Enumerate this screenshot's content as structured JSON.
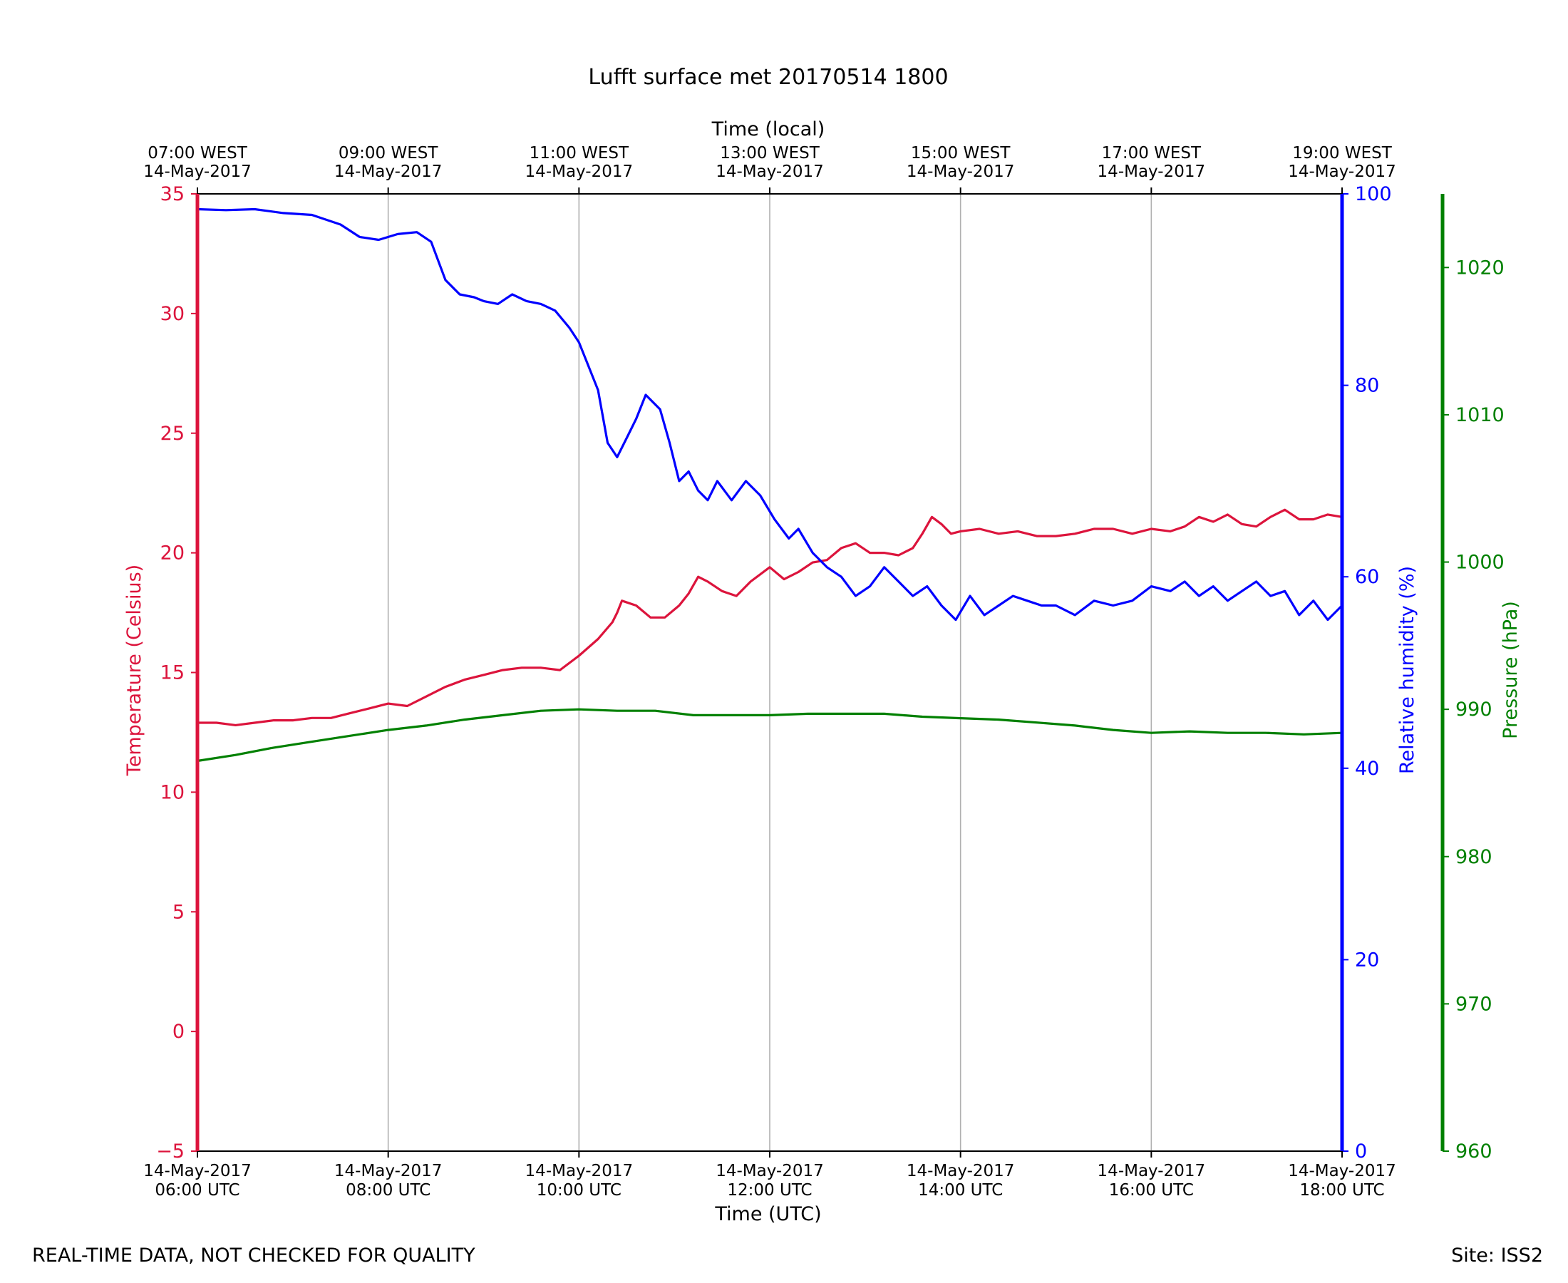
{
  "chart_data": {
    "type": "line",
    "title": "Lufft surface met 20170514 1800",
    "x_top_label": "Time (local)",
    "x_bottom_label": "Time (UTC)",
    "x_range_hours_utc": [
      6,
      18
    ],
    "x_bottom_ticks": [
      {
        "hour": 6,
        "date": "14-May-2017",
        "time": "06:00 UTC"
      },
      {
        "hour": 8,
        "date": "14-May-2017",
        "time": "08:00 UTC"
      },
      {
        "hour": 10,
        "date": "14-May-2017",
        "time": "10:00 UTC"
      },
      {
        "hour": 12,
        "date": "14-May-2017",
        "time": "12:00 UTC"
      },
      {
        "hour": 14,
        "date": "14-May-2017",
        "time": "14:00 UTC"
      },
      {
        "hour": 16,
        "date": "14-May-2017",
        "time": "16:00 UTC"
      },
      {
        "hour": 18,
        "date": "14-May-2017",
        "time": "18:00 UTC"
      }
    ],
    "x_top_ticks": [
      {
        "hour": 6,
        "time": "07:00 WEST",
        "date": "14-May-2017"
      },
      {
        "hour": 8,
        "time": "09:00 WEST",
        "date": "14-May-2017"
      },
      {
        "hour": 10,
        "time": "11:00 WEST",
        "date": "14-May-2017"
      },
      {
        "hour": 12,
        "time": "13:00 WEST",
        "date": "14-May-2017"
      },
      {
        "hour": 14,
        "time": "15:00 WEST",
        "date": "14-May-2017"
      },
      {
        "hour": 16,
        "time": "17:00 WEST",
        "date": "14-May-2017"
      },
      {
        "hour": 18,
        "time": "19:00 WEST",
        "date": "14-May-2017"
      }
    ],
    "axes": {
      "temperature": {
        "label": "Temperature (Celsius)",
        "range": [
          -5,
          35
        ],
        "ticks": [
          -5,
          0,
          5,
          10,
          15,
          20,
          25,
          30,
          35
        ],
        "tick_labels": [
          "−5",
          "0",
          "5",
          "10",
          "15",
          "20",
          "25",
          "30",
          "35"
        ],
        "color": "#dc143c"
      },
      "humidity": {
        "label": "Relative humidity (%)",
        "range": [
          0,
          100
        ],
        "ticks": [
          0,
          20,
          40,
          60,
          80,
          100
        ],
        "tick_labels": [
          "0",
          "20",
          "40",
          "60",
          "80",
          "100"
        ],
        "color": "#0000ff"
      },
      "pressure": {
        "label": "Pressure (hPa)",
        "range": [
          960,
          1025
        ],
        "ticks": [
          960,
          970,
          980,
          990,
          1000,
          1010,
          1020
        ],
        "tick_labels": [
          "960",
          "970",
          "980",
          "990",
          "1000",
          "1010",
          "1020"
        ],
        "color": "#008000"
      }
    },
    "grid": "vertical",
    "series": [
      {
        "name": "Temperature",
        "axis": "temperature",
        "color": "#dc143c",
        "points": [
          [
            6.0,
            12.9
          ],
          [
            6.2,
            12.9
          ],
          [
            6.4,
            12.8
          ],
          [
            6.6,
            12.9
          ],
          [
            6.8,
            13.0
          ],
          [
            7.0,
            13.0
          ],
          [
            7.2,
            13.1
          ],
          [
            7.4,
            13.1
          ],
          [
            7.6,
            13.3
          ],
          [
            7.8,
            13.5
          ],
          [
            8.0,
            13.7
          ],
          [
            8.2,
            13.6
          ],
          [
            8.4,
            14.0
          ],
          [
            8.6,
            14.4
          ],
          [
            8.8,
            14.7
          ],
          [
            9.0,
            14.9
          ],
          [
            9.2,
            15.1
          ],
          [
            9.4,
            15.2
          ],
          [
            9.6,
            15.2
          ],
          [
            9.8,
            15.1
          ],
          [
            10.0,
            15.7
          ],
          [
            10.2,
            16.4
          ],
          [
            10.35,
            17.1
          ],
          [
            10.4,
            17.5
          ],
          [
            10.45,
            18.0
          ],
          [
            10.6,
            17.8
          ],
          [
            10.75,
            17.3
          ],
          [
            10.9,
            17.3
          ],
          [
            11.05,
            17.8
          ],
          [
            11.15,
            18.3
          ],
          [
            11.25,
            19.0
          ],
          [
            11.35,
            18.8
          ],
          [
            11.5,
            18.4
          ],
          [
            11.65,
            18.2
          ],
          [
            11.8,
            18.8
          ],
          [
            12.0,
            19.4
          ],
          [
            12.15,
            18.9
          ],
          [
            12.3,
            19.2
          ],
          [
            12.45,
            19.6
          ],
          [
            12.6,
            19.7
          ],
          [
            12.75,
            20.2
          ],
          [
            12.9,
            20.4
          ],
          [
            13.05,
            20.0
          ],
          [
            13.2,
            20.0
          ],
          [
            13.35,
            19.9
          ],
          [
            13.5,
            20.2
          ],
          [
            13.6,
            20.8
          ],
          [
            13.7,
            21.5
          ],
          [
            13.8,
            21.2
          ],
          [
            13.9,
            20.8
          ],
          [
            14.0,
            20.9
          ],
          [
            14.2,
            21.0
          ],
          [
            14.4,
            20.8
          ],
          [
            14.6,
            20.9
          ],
          [
            14.8,
            20.7
          ],
          [
            15.0,
            20.7
          ],
          [
            15.2,
            20.8
          ],
          [
            15.4,
            21.0
          ],
          [
            15.6,
            21.0
          ],
          [
            15.8,
            20.8
          ],
          [
            16.0,
            21.0
          ],
          [
            16.2,
            20.9
          ],
          [
            16.35,
            21.1
          ],
          [
            16.5,
            21.5
          ],
          [
            16.65,
            21.3
          ],
          [
            16.8,
            21.6
          ],
          [
            16.95,
            21.2
          ],
          [
            17.1,
            21.1
          ],
          [
            17.25,
            21.5
          ],
          [
            17.4,
            21.8
          ],
          [
            17.55,
            21.4
          ],
          [
            17.7,
            21.4
          ],
          [
            17.85,
            21.6
          ],
          [
            18.0,
            21.5
          ]
        ]
      },
      {
        "name": "Relative humidity",
        "axis": "humidity",
        "color": "#0000ff",
        "points": [
          [
            6.0,
            98.4
          ],
          [
            6.3,
            98.3
          ],
          [
            6.6,
            98.4
          ],
          [
            6.9,
            98.0
          ],
          [
            7.2,
            97.8
          ],
          [
            7.5,
            96.8
          ],
          [
            7.7,
            95.5
          ],
          [
            7.9,
            95.2
          ],
          [
            8.1,
            95.8
          ],
          [
            8.3,
            96.0
          ],
          [
            8.45,
            95.0
          ],
          [
            8.6,
            91.0
          ],
          [
            8.75,
            89.5
          ],
          [
            8.9,
            89.2
          ],
          [
            9.0,
            88.8
          ],
          [
            9.15,
            88.5
          ],
          [
            9.3,
            89.5
          ],
          [
            9.45,
            88.8
          ],
          [
            9.6,
            88.5
          ],
          [
            9.75,
            87.8
          ],
          [
            9.9,
            86.0
          ],
          [
            10.0,
            84.5
          ],
          [
            10.1,
            82.0
          ],
          [
            10.2,
            79.5
          ],
          [
            10.3,
            74.0
          ],
          [
            10.4,
            72.5
          ],
          [
            10.5,
            74.5
          ],
          [
            10.6,
            76.5
          ],
          [
            10.7,
            79.0
          ],
          [
            10.85,
            77.5
          ],
          [
            10.95,
            74.0
          ],
          [
            11.05,
            70.0
          ],
          [
            11.15,
            71.0
          ],
          [
            11.25,
            69.0
          ],
          [
            11.35,
            68.0
          ],
          [
            11.45,
            70.0
          ],
          [
            11.6,
            68.0
          ],
          [
            11.75,
            70.0
          ],
          [
            11.9,
            68.5
          ],
          [
            12.05,
            66.0
          ],
          [
            12.2,
            64.0
          ],
          [
            12.3,
            65.0
          ],
          [
            12.45,
            62.5
          ],
          [
            12.6,
            61.0
          ],
          [
            12.75,
            60.0
          ],
          [
            12.9,
            58.0
          ],
          [
            13.05,
            59.0
          ],
          [
            13.2,
            61.0
          ],
          [
            13.35,
            59.5
          ],
          [
            13.5,
            58.0
          ],
          [
            13.65,
            59.0
          ],
          [
            13.8,
            57.0
          ],
          [
            13.95,
            55.5
          ],
          [
            14.1,
            58.0
          ],
          [
            14.25,
            56.0
          ],
          [
            14.4,
            57.0
          ],
          [
            14.55,
            58.0
          ],
          [
            14.7,
            57.5
          ],
          [
            14.85,
            57.0
          ],
          [
            15.0,
            57.0
          ],
          [
            15.2,
            56.0
          ],
          [
            15.4,
            57.5
          ],
          [
            15.6,
            57.0
          ],
          [
            15.8,
            57.5
          ],
          [
            16.0,
            59.0
          ],
          [
            16.2,
            58.5
          ],
          [
            16.35,
            59.5
          ],
          [
            16.5,
            58.0
          ],
          [
            16.65,
            59.0
          ],
          [
            16.8,
            57.5
          ],
          [
            16.95,
            58.5
          ],
          [
            17.1,
            59.5
          ],
          [
            17.25,
            58.0
          ],
          [
            17.4,
            58.5
          ],
          [
            17.55,
            56.0
          ],
          [
            17.7,
            57.5
          ],
          [
            17.85,
            55.5
          ],
          [
            18.0,
            57.0
          ]
        ]
      },
      {
        "name": "Pressure",
        "axis": "pressure",
        "color": "#008000",
        "points": [
          [
            6.0,
            986.5
          ],
          [
            6.4,
            986.9
          ],
          [
            6.8,
            987.4
          ],
          [
            7.2,
            987.8
          ],
          [
            7.6,
            988.2
          ],
          [
            8.0,
            988.6
          ],
          [
            8.4,
            988.9
          ],
          [
            8.8,
            989.3
          ],
          [
            9.2,
            989.6
          ],
          [
            9.6,
            989.9
          ],
          [
            10.0,
            990.0
          ],
          [
            10.4,
            989.9
          ],
          [
            10.8,
            989.9
          ],
          [
            11.2,
            989.6
          ],
          [
            11.6,
            989.6
          ],
          [
            12.0,
            989.6
          ],
          [
            12.4,
            989.7
          ],
          [
            12.8,
            989.7
          ],
          [
            13.2,
            989.7
          ],
          [
            13.6,
            989.5
          ],
          [
            14.0,
            989.4
          ],
          [
            14.4,
            989.3
          ],
          [
            14.8,
            989.1
          ],
          [
            15.2,
            988.9
          ],
          [
            15.6,
            988.6
          ],
          [
            16.0,
            988.4
          ],
          [
            16.4,
            988.5
          ],
          [
            16.8,
            988.4
          ],
          [
            17.2,
            988.4
          ],
          [
            17.6,
            988.3
          ],
          [
            18.0,
            988.4
          ]
        ]
      }
    ]
  },
  "footer": {
    "disclaimer": "REAL-TIME DATA, NOT CHECKED FOR QUALITY",
    "site": "Site: ISS2"
  }
}
